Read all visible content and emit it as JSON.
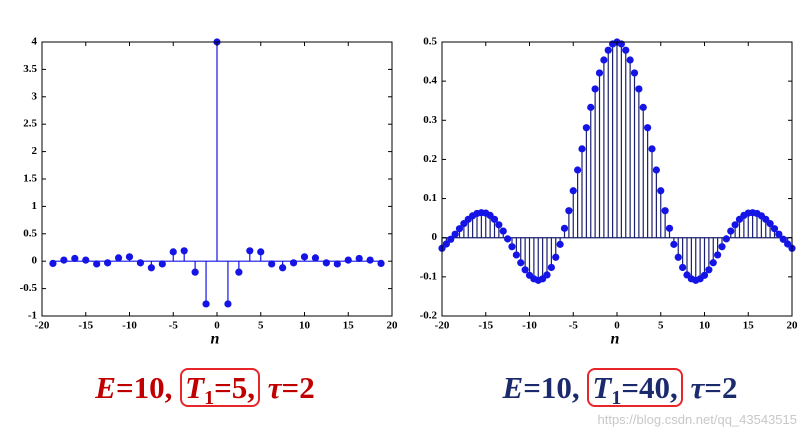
{
  "chart_data": [
    {
      "type": "stem",
      "color": "#1414e6",
      "stem_color": "#1414e6",
      "axis_label": "n",
      "x": [
        -18.75,
        -17.5,
        -16.25,
        -15,
        -13.75,
        -12.5,
        -11.25,
        -10,
        -8.75,
        -7.5,
        -6.25,
        -5,
        -3.75,
        -2.5,
        -1.25,
        0,
        1.25,
        2.5,
        3.75,
        5,
        6.25,
        7.5,
        8.75,
        10,
        11.25,
        12.5,
        13.75,
        15,
        16.25,
        17.5,
        18.75
      ],
      "values": [
        -0.04,
        0.02,
        0.05,
        0.02,
        -0.05,
        -0.03,
        0.06,
        0.08,
        -0.03,
        -0.12,
        -0.05,
        0.17,
        0.19,
        -0.2,
        -0.78,
        4,
        -0.78,
        -0.2,
        0.19,
        0.17,
        -0.05,
        -0.12,
        -0.03,
        0.08,
        0.06,
        -0.03,
        -0.05,
        0.02,
        0.05,
        0.02,
        -0.04
      ],
      "xlim": [
        -20,
        20
      ],
      "xticks": [
        -20,
        -15,
        -10,
        -5,
        0,
        5,
        10,
        15,
        20
      ],
      "ylim": [
        -1,
        4
      ],
      "yticks": [
        -1,
        -0.5,
        0,
        0.5,
        1,
        1.5,
        2,
        2.5,
        3,
        3.5,
        4
      ],
      "caption": [
        "E",
        "=10, ",
        "T",
        "1",
        "=5,",
        " ",
        "τ",
        "=2"
      ],
      "caption_color": "#c00000"
    },
    {
      "type": "stem",
      "color": "#1414e6",
      "stem_color": "#1a1f6e",
      "axis_label": "n",
      "x": [
        -20,
        -19.5,
        -19,
        -18.5,
        -18,
        -17.5,
        -17,
        -16.5,
        -16,
        -15.5,
        -15,
        -14.5,
        -14,
        -13.5,
        -13,
        -12.5,
        -12,
        -11.5,
        -11,
        -10.5,
        -10,
        -9.5,
        -9,
        -8.5,
        -8,
        -7.5,
        -7,
        -6.5,
        -6,
        -5.5,
        -5,
        -4.5,
        -4,
        -3.5,
        -3,
        -2.5,
        -2,
        -1.5,
        -1,
        -0.5,
        0,
        0.5,
        1,
        1.5,
        2,
        2.5,
        3,
        3.5,
        4,
        4.5,
        5,
        5.5,
        6,
        6.5,
        7,
        7.5,
        8,
        8.5,
        9,
        9.5,
        10,
        10.5,
        11,
        11.5,
        12,
        12.5,
        13,
        13.5,
        14,
        14.5,
        15,
        15.5,
        16,
        16.5,
        17,
        17.5,
        18,
        18.5,
        19,
        19.5,
        20
      ],
      "values": [
        -0.027,
        -0.016,
        -0.004,
        0.009,
        0.023,
        0.036,
        0.047,
        0.056,
        0.062,
        0.064,
        0.063,
        0.057,
        0.047,
        0.033,
        0.017,
        -0.003,
        -0.023,
        -0.044,
        -0.064,
        -0.082,
        -0.096,
        -0.105,
        -0.109,
        -0.105,
        -0.095,
        -0.076,
        -0.05,
        -0.017,
        0.024,
        0.069,
        0.12,
        0.173,
        0.227,
        0.281,
        0.333,
        0.38,
        0.421,
        0.454,
        0.479,
        0.495,
        0.5,
        0.495,
        0.479,
        0.454,
        0.421,
        0.38,
        0.333,
        0.281,
        0.227,
        0.173,
        0.12,
        0.069,
        0.024,
        -0.017,
        -0.05,
        -0.076,
        -0.095,
        -0.105,
        -0.109,
        -0.105,
        -0.096,
        -0.082,
        -0.064,
        -0.044,
        -0.023,
        -0.003,
        0.017,
        0.033,
        0.047,
        0.057,
        0.063,
        0.064,
        0.062,
        0.056,
        0.047,
        0.036,
        0.023,
        0.009,
        -0.004,
        -0.016,
        -0.027
      ],
      "xlim": [
        -20,
        20
      ],
      "xticks": [
        -20,
        -15,
        -10,
        -5,
        0,
        5,
        10,
        15,
        20
      ],
      "ylim": [
        -0.2,
        0.5
      ],
      "yticks": [
        -0.2,
        -0.1,
        0,
        0.1,
        0.2,
        0.3,
        0.4,
        0.5
      ],
      "caption": [
        "E",
        "=10, ",
        "T",
        "1",
        "=40,",
        " ",
        "τ",
        "=2"
      ],
      "caption_color": "#1a2a6c"
    }
  ],
  "watermark": "https://blog.csdn.net/qq_43543515"
}
